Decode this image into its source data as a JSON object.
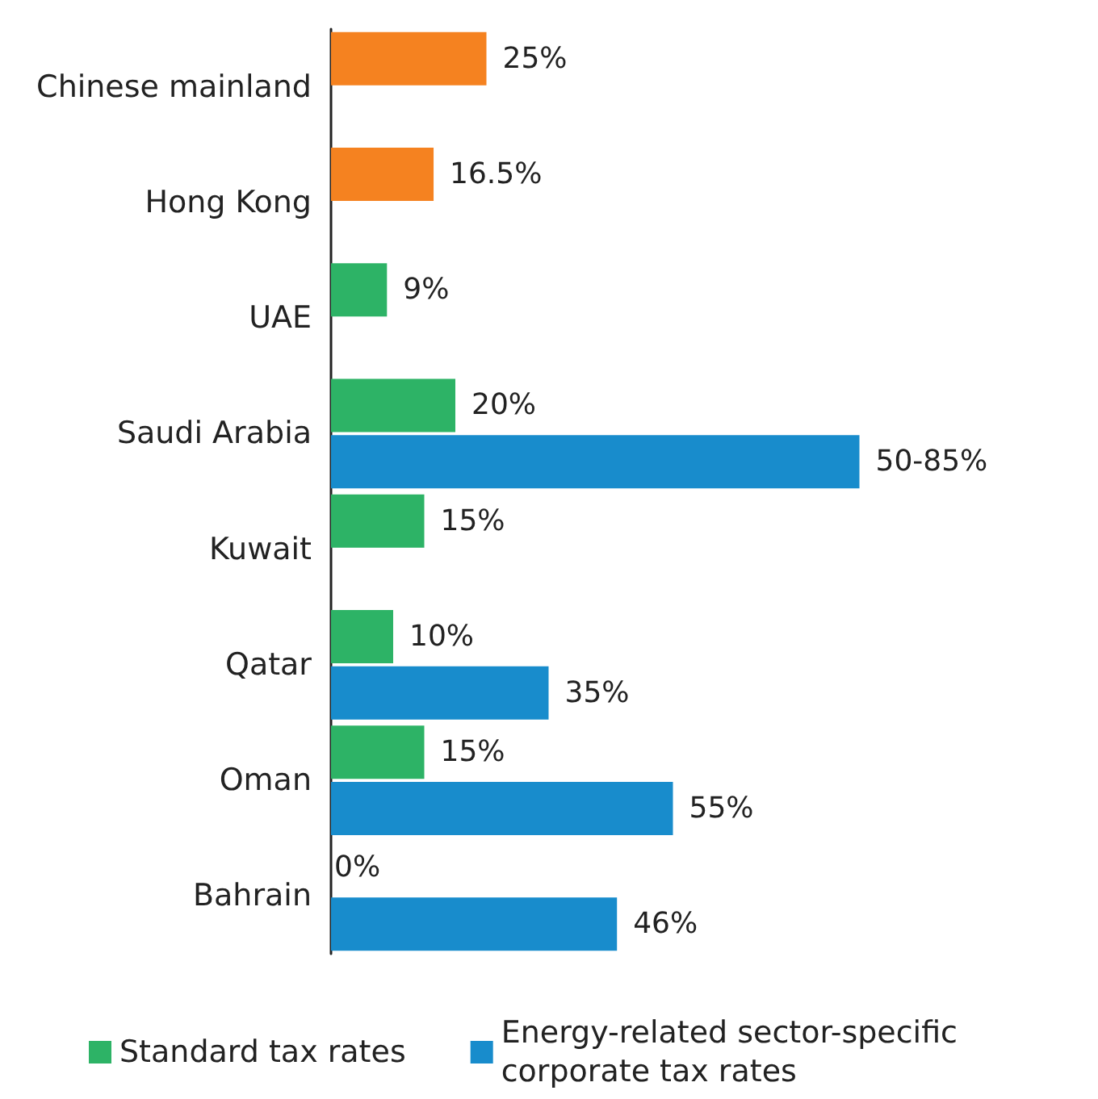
{
  "chart_data": {
    "type": "bar",
    "orientation": "horizontal",
    "categories": [
      "Chinese mainland",
      "Hong Kong",
      "UAE",
      "Saudi Arabia",
      "Kuwait",
      "Qatar",
      "Oman",
      "Bahrain"
    ],
    "series": [
      {
        "name": "Standard tax rates",
        "color": "#2db366",
        "colors": [
          "#f58220",
          "#f58220",
          "#2db366",
          "#2db366",
          "#2db366",
          "#2db366",
          "#2db366",
          "#2db366"
        ],
        "values": [
          25,
          16.5,
          9,
          20,
          15,
          10,
          15,
          0
        ],
        "value_labels": [
          "25%",
          "16.5%",
          "9%",
          "20%",
          "15%",
          "10%",
          "15%",
          null
        ]
      },
      {
        "name": "Energy-related sector-specific corporate tax rates",
        "color": "#188ccc",
        "values": [
          null,
          null,
          null,
          85,
          null,
          35,
          55,
          46
        ],
        "value_labels": [
          null,
          null,
          null,
          null,
          null,
          "35%",
          "55%",
          "46%"
        ]
      }
    ],
    "annotations": [
      {
        "text": "50-85%",
        "x": 85,
        "y": "Saudi Arabia"
      },
      {
        "text": "0%",
        "x": 0,
        "y": "Bahrain"
      }
    ],
    "legend": "bottom left"
  }
}
